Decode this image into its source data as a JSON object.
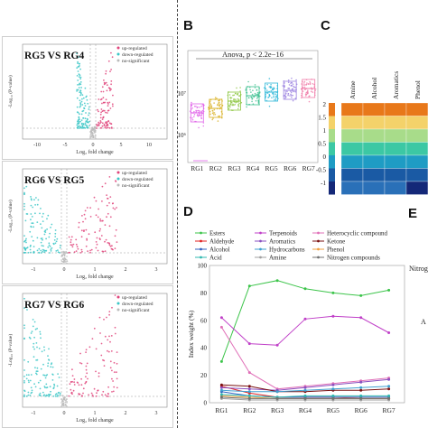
{
  "labels": {
    "B": "B",
    "C": "C",
    "D": "D",
    "E": "E"
  },
  "chart_data": [
    {
      "type": "scatter",
      "title": "RG5 VS RG4",
      "xlabel": "Log₂ fold change",
      "ylabel": "-Log₁₀ (P-value)",
      "xticks": [
        "-10",
        "-5",
        "0",
        "5",
        "10"
      ],
      "legend": [
        "up-regulated",
        "down-regulated",
        "no-significant"
      ],
      "colors": {
        "up": "#e0457b",
        "down": "#3cc7c7",
        "ns": "#bbbbbb"
      }
    },
    {
      "type": "scatter",
      "title": "RG6 VS RG5",
      "xlabel": "Log₂ fold change",
      "ylabel": "-Log₁₀ (P-value)",
      "xticks": [
        "-1",
        "0",
        "1",
        "2",
        "3"
      ],
      "legend": [
        "up-regulated",
        "down-regulated",
        "no-significant"
      ],
      "colors": {
        "up": "#e0457b",
        "down": "#3cc7c7",
        "ns": "#bbbbbb"
      }
    },
    {
      "type": "scatter",
      "title": "RG7 VS RG6",
      "xlabel": "Log₂ fold change",
      "ylabel": "-Log₁₀ (P-value)",
      "xticks": [
        "-1",
        "0",
        "1",
        "2",
        "3"
      ],
      "legend": [
        "up-regulated",
        "down-regulated",
        "no-significant"
      ],
      "colors": {
        "up": "#e0457b",
        "down": "#3cc7c7",
        "ns": "#bbbbbb"
      }
    },
    {
      "type": "box",
      "annotation": "Anova, p < 2.2e−16",
      "categories": [
        "RG1",
        "RG2",
        "RG3",
        "RG4",
        "RG5",
        "RG6",
        "RG7"
      ],
      "yticks": [
        "10⁷",
        "10⁶"
      ],
      "colors": [
        "#e060e8",
        "#d8b020",
        "#8cc63f",
        "#3cc090",
        "#30b8d8",
        "#9a80e0",
        "#f07aa8"
      ]
    },
    {
      "type": "heatmap",
      "columns": [
        "Amine",
        "Alcohol",
        "Aromatics",
        "Phenol"
      ],
      "scale_ticks": [
        "2",
        "1.5",
        "1",
        "0.5",
        "0",
        "-0.5",
        "-1"
      ],
      "scale_colors": [
        "#e8781a",
        "#f4d26a",
        "#a8dc8a",
        "#3cc8a4",
        "#1f9cc4",
        "#1a5aa4",
        "#142878"
      ]
    },
    {
      "type": "line",
      "ylabel": "Index weight (%)",
      "ylim": [
        0,
        100
      ],
      "yticks": [
        "0",
        "20",
        "40",
        "60",
        "80",
        "100"
      ],
      "categories": [
        "RG1",
        "RG2",
        "RG3",
        "RG4",
        "RG5",
        "RG6",
        "RG7"
      ],
      "series": [
        {
          "name": "Esters",
          "color": "#3cc44a",
          "values": [
            30,
            85,
            89,
            83,
            80,
            78,
            82
          ]
        },
        {
          "name": "Terpenoids",
          "color": "#c040c8",
          "values": [
            62,
            43,
            42,
            61,
            63,
            62,
            51
          ]
        },
        {
          "name": "Heterocyclic compound",
          "color": "#e070b8",
          "values": [
            55,
            22,
            10,
            12,
            14,
            16,
            18
          ]
        },
        {
          "name": "Aldehyde",
          "color": "#e02020",
          "values": [
            12,
            7,
            4,
            4,
            4,
            3,
            3
          ]
        },
        {
          "name": "Aromatics",
          "color": "#8a50c0",
          "values": [
            11,
            10,
            9,
            11,
            13,
            15,
            17
          ]
        },
        {
          "name": "Ketone",
          "color": "#7a1010",
          "values": [
            13,
            12,
            8,
            8,
            9,
            9,
            10
          ]
        },
        {
          "name": "Alcohol",
          "color": "#3060c0",
          "values": [
            8,
            5,
            4,
            4,
            4,
            4,
            4
          ]
        },
        {
          "name": "Hydrocarbons",
          "color": "#40a0d0",
          "values": [
            9,
            8,
            8,
            9,
            10,
            11,
            12
          ]
        },
        {
          "name": "Phenol",
          "color": "#f0a040",
          "values": [
            5,
            4,
            3,
            3,
            3,
            3,
            3
          ]
        },
        {
          "name": "Acid",
          "color": "#30b8b0",
          "values": [
            6,
            5,
            4,
            5,
            5,
            5,
            5
          ]
        },
        {
          "name": "Amine",
          "color": "#a0a0a0",
          "values": [
            3,
            2,
            2,
            2,
            2,
            2,
            2
          ]
        },
        {
          "name": "Nitrogen compounds",
          "color": "#707070",
          "values": [
            4,
            3,
            3,
            3,
            3,
            3,
            3
          ]
        }
      ]
    }
  ],
  "panel_e": {
    "text_1": "Nitroge",
    "text_2": "A"
  }
}
